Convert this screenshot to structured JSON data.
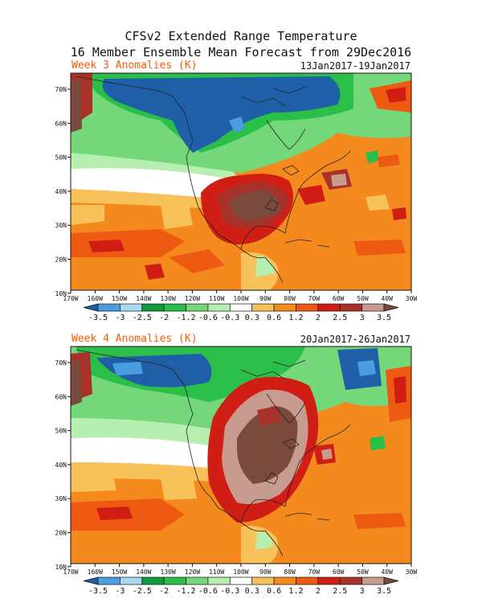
{
  "title_line1": "CFSv2 Extended Range Temperature",
  "title_line2": "16 Member Ensemble Mean Forecast from 29Dec2016",
  "panels": [
    {
      "label": "Week 3 Anomalies (K)",
      "dates": "13Jan2017-19Jan2017"
    },
    {
      "label": "Week 4 Anomalies (K)",
      "dates": "20Jan2017-26Jan2017"
    }
  ],
  "lat_ticks": [
    "70N",
    "60N",
    "50N",
    "40N",
    "30N",
    "20N",
    "10N"
  ],
  "lon_ticks": [
    "170W",
    "160W",
    "150W",
    "140W",
    "130W",
    "120W",
    "110W",
    "100W",
    "90W",
    "80W",
    "70W",
    "60W",
    "50W",
    "40W",
    "30W"
  ],
  "colorbar": {
    "labels": [
      "-3.5",
      "-3",
      "-2.5",
      "-2",
      "-1.2",
      "-0.6",
      "-0.3",
      "0.3",
      "0.6",
      "1.2",
      "2",
      "2.5",
      "3",
      "3.5"
    ],
    "colors": [
      "#1f5fa8",
      "#4a9de0",
      "#a9d8f0",
      "#0f9a3c",
      "#2bbf4a",
      "#74d77a",
      "#b7efb0",
      "#ffffff",
      "#f7c25a",
      "#f48a1e",
      "#ef5a13",
      "#d01e14",
      "#a8322a",
      "#c79b90",
      "#7a4a3c"
    ]
  }
}
